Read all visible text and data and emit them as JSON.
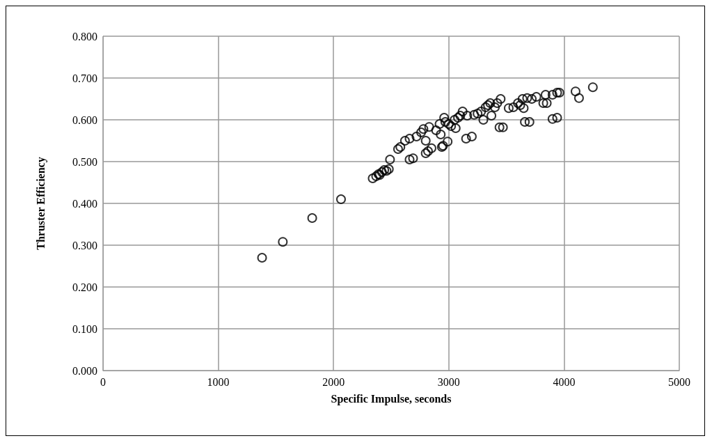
{
  "chart_data": {
    "type": "scatter",
    "xlabel": "Specific Impulse, seconds",
    "ylabel": "Thruster Efficiency",
    "marker": "circle",
    "grid": true,
    "xlim": [
      0,
      5000
    ],
    "xticks": [
      0,
      1000,
      2000,
      3000,
      4000,
      5000
    ],
    "ylim": [
      0,
      0.8
    ],
    "yticks": [
      {
        "value": 0,
        "label": "0.000"
      },
      {
        "value": 0.1,
        "label": "0.100"
      },
      {
        "value": 0.2,
        "label": "0.200"
      },
      {
        "value": 0.3,
        "label": "0.300"
      },
      {
        "value": 0.4,
        "label": "0.400"
      },
      {
        "value": 0.5,
        "label": "0.500"
      },
      {
        "value": 0.6,
        "label": "0.600"
      },
      {
        "value": 0.7,
        "label": "0.700"
      },
      {
        "value": 0.8,
        "label": "0.800"
      }
    ],
    "series": [
      {
        "color": "#000000",
        "x": [
          1380,
          1560,
          1815,
          2065,
          2340,
          2370,
          2390,
          2400,
          2420,
          2440,
          2460,
          2480,
          2490,
          2560,
          2580,
          2620,
          2660,
          2660,
          2690,
          2720,
          2760,
          2780,
          2800,
          2800,
          2820,
          2830,
          2850,
          2890,
          2920,
          2930,
          2940,
          2950,
          2960,
          2970,
          2990,
          3000,
          3020,
          3050,
          3060,
          3080,
          3100,
          3120,
          3150,
          3160,
          3200,
          3220,
          3250,
          3280,
          3300,
          3320,
          3340,
          3360,
          3370,
          3400,
          3420,
          3440,
          3450,
          3470,
          3520,
          3560,
          3600,
          3620,
          3640,
          3650,
          3660,
          3680,
          3700,
          3720,
          3760,
          3820,
          3840,
          3850,
          3900,
          3900,
          3940,
          3940,
          3960,
          4100,
          4130,
          4250
        ],
        "values": [
          0.27,
          0.308,
          0.365,
          0.41,
          0.46,
          0.465,
          0.47,
          0.468,
          0.475,
          0.48,
          0.478,
          0.482,
          0.505,
          0.53,
          0.535,
          0.55,
          0.555,
          0.505,
          0.508,
          0.56,
          0.57,
          0.578,
          0.55,
          0.52,
          0.525,
          0.583,
          0.532,
          0.575,
          0.59,
          0.565,
          0.535,
          0.538,
          0.605,
          0.595,
          0.548,
          0.59,
          0.585,
          0.6,
          0.58,
          0.605,
          0.61,
          0.62,
          0.555,
          0.61,
          0.56,
          0.612,
          0.615,
          0.62,
          0.6,
          0.63,
          0.635,
          0.64,
          0.61,
          0.63,
          0.64,
          0.582,
          0.65,
          0.582,
          0.628,
          0.63,
          0.64,
          0.635,
          0.65,
          0.628,
          0.595,
          0.652,
          0.595,
          0.65,
          0.655,
          0.64,
          0.66,
          0.64,
          0.602,
          0.66,
          0.605,
          0.665,
          0.665,
          0.668,
          0.652,
          0.678
        ]
      }
    ]
  }
}
